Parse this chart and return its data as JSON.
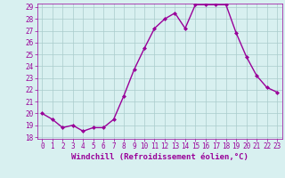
{
  "x": [
    0,
    1,
    2,
    3,
    4,
    5,
    6,
    7,
    8,
    9,
    10,
    11,
    12,
    13,
    14,
    15,
    16,
    17,
    18,
    19,
    20,
    21,
    22,
    23
  ],
  "y": [
    20.0,
    19.5,
    18.8,
    19.0,
    18.5,
    18.8,
    18.8,
    19.5,
    21.5,
    23.7,
    25.5,
    27.2,
    28.0,
    28.5,
    27.2,
    29.2,
    29.2,
    29.2,
    29.2,
    26.8,
    24.8,
    23.2,
    22.2,
    21.8
  ],
  "line_color": "#990099",
  "marker": "D",
  "marker_size": 2.0,
  "bg_color": "#d8f0f0",
  "grid_color": "#aacccc",
  "xlabel": "Windchill (Refroidissement éolien,°C)",
  "ylabel": "",
  "ylim_min": 18,
  "ylim_max": 29,
  "xlim_min": -0.5,
  "xlim_max": 23.5,
  "yticks": [
    18,
    19,
    20,
    21,
    22,
    23,
    24,
    25,
    26,
    27,
    28,
    29
  ],
  "xticks": [
    0,
    1,
    2,
    3,
    4,
    5,
    6,
    7,
    8,
    9,
    10,
    11,
    12,
    13,
    14,
    15,
    16,
    17,
    18,
    19,
    20,
    21,
    22,
    23
  ],
  "tick_label_size": 5.5,
  "xlabel_size": 6.5,
  "line_width": 1.0
}
